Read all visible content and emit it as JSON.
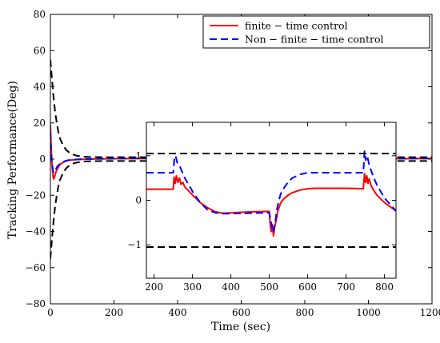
{
  "chart_data": {
    "type": "line",
    "title": "",
    "xlabel": "Time (sec)",
    "ylabel": "Tracking Performance(Deg)",
    "xlim": [
      0,
      1200
    ],
    "ylim": [
      -80,
      80
    ],
    "x_ticks": [
      0,
      200,
      400,
      600,
      800,
      1000,
      1200
    ],
    "y_ticks": [
      -80,
      -60,
      -40,
      -20,
      0,
      20,
      40,
      60,
      80
    ],
    "x_tick_labels": [
      "0",
      "200",
      "400",
      "600",
      "800",
      "1000",
      "1200"
    ],
    "y_tick_labels": [
      "−80",
      "−60",
      "−40",
      "−20",
      "0",
      "20",
      "40",
      "60",
      "80"
    ],
    "grid": false,
    "legend_position": "top-right",
    "series": [
      {
        "name": "finite − time control",
        "color": "#ff0000",
        "style": "solid",
        "x": [
          0,
          2,
          5,
          8,
          10,
          13,
          16,
          20,
          25,
          30,
          40,
          50,
          60,
          80,
          100,
          150,
          200,
          250,
          300,
          350,
          400,
          450,
          500,
          550,
          600,
          650,
          700,
          750,
          800,
          850,
          900,
          950,
          1000,
          1050,
          1100,
          1150,
          1200
        ],
        "y": [
          19,
          8,
          -3,
          -9,
          -11,
          -10,
          -8,
          -6,
          -4.5,
          -3,
          -1.8,
          -1,
          -0.6,
          -0.3,
          -0.1,
          0.1,
          0.2,
          0.25,
          0.3,
          0.25,
          0.2,
          0.25,
          0.3,
          0.2,
          0.1,
          -0.1,
          -0.2,
          -0.25,
          0.2,
          0.25,
          0.2,
          0.25,
          0.3,
          0.25,
          0.2,
          0.25,
          0.25
        ]
      },
      {
        "name": "Non − finite − time control",
        "color": "#0000ff",
        "style": "dashed",
        "x": [
          0,
          2,
          5,
          8,
          10,
          13,
          16,
          20,
          25,
          30,
          40,
          50,
          60,
          80,
          100,
          150,
          200,
          250,
          300,
          350,
          400,
          450,
          500,
          550,
          600,
          650,
          700,
          750,
          800,
          850,
          900,
          950,
          1000,
          1050,
          1100,
          1150,
          1200
        ],
        "y": [
          15,
          5,
          -2,
          -6,
          -7.5,
          -7,
          -6,
          -4.5,
          -3.5,
          -2.5,
          -1.5,
          -0.8,
          -0.5,
          -0.2,
          0,
          0.2,
          0.3,
          0.4,
          0.5,
          0.4,
          0.3,
          0.4,
          0.6,
          0.3,
          0.2,
          0,
          -0.2,
          -0.3,
          0.4,
          0.5,
          0.4,
          0.5,
          0.6,
          0.4,
          0.3,
          0.4,
          0.4
        ]
      },
      {
        "name": "",
        "color": "#000000",
        "style": "dashed",
        "x": [
          0,
          5,
          10,
          15,
          20,
          25,
          30,
          40,
          50,
          60,
          70,
          80,
          100,
          120,
          150,
          200,
          1200
        ],
        "y": [
          55,
          44,
          34,
          26,
          20,
          15,
          11.5,
          7.5,
          5,
          3.5,
          2.6,
          2,
          1.4,
          1.2,
          1.08,
          1.05,
          1.05
        ]
      },
      {
        "name": "",
        "color": "#000000",
        "style": "dashed",
        "x": [
          0,
          5,
          10,
          15,
          20,
          25,
          30,
          40,
          50,
          60,
          70,
          80,
          100,
          120,
          150,
          200,
          1200
        ],
        "y": [
          -55,
          -44,
          -34,
          -26,
          -20,
          -15,
          -11.5,
          -7.5,
          -5,
          -3.5,
          -2.6,
          -2,
          -1.4,
          -1.2,
          -1.08,
          -1.05,
          -1.05
        ]
      }
    ],
    "inset": {
      "xlim": [
        180,
        830
      ],
      "ylim": [
        -1.75,
        1.75
      ],
      "x_ticks": [
        200,
        300,
        400,
        500,
        600,
        700,
        800
      ],
      "y_ticks": [
        -1,
        0,
        1
      ],
      "x_tick_labels": [
        "200",
        "300",
        "400",
        "500",
        "600",
        "700",
        "800"
      ],
      "y_tick_labels": [
        "−1",
        "0",
        "1"
      ],
      "series": [
        {
          "color": "#ff0000",
          "style": "solid",
          "x": [
            180,
            250,
            252,
            255,
            258,
            262,
            266,
            270,
            275,
            280,
            300,
            320,
            340,
            360,
            380,
            400,
            450,
            500,
            502,
            505,
            508,
            511,
            514,
            518,
            522,
            526,
            530,
            540,
            550,
            560,
            580,
            600,
            620,
            650,
            700,
            745,
            748,
            751,
            754,
            757,
            760,
            765,
            770,
            780,
            800,
            830
          ],
          "y": [
            0.25,
            0.25,
            0.52,
            0.38,
            0.55,
            0.4,
            0.5,
            0.36,
            0.4,
            0.3,
            0.12,
            -0.05,
            -0.17,
            -0.26,
            -0.29,
            -0.28,
            -0.26,
            -0.25,
            -0.5,
            -0.7,
            -0.55,
            -0.8,
            -0.6,
            -0.45,
            -0.25,
            -0.15,
            -0.05,
            0.05,
            0.12,
            0.17,
            0.23,
            0.26,
            0.27,
            0.27,
            0.27,
            0.26,
            0.6,
            0.4,
            0.55,
            0.38,
            0.48,
            0.33,
            0.25,
            0.12,
            -0.05,
            -0.24
          ]
        },
        {
          "color": "#0000ff",
          "style": "dashed",
          "x": [
            180,
            250,
            253,
            256,
            260,
            265,
            270,
            280,
            300,
            320,
            340,
            360,
            380,
            400,
            450,
            500,
            505,
            510,
            515,
            520,
            525,
            530,
            540,
            550,
            560,
            580,
            600,
            620,
            650,
            700,
            745,
            748,
            751,
            755,
            760,
            770,
            780,
            800,
            830
          ],
          "y": [
            0.62,
            0.62,
            0.95,
            1.0,
            0.85,
            0.8,
            0.7,
            0.5,
            0.2,
            -0.05,
            -0.22,
            -0.28,
            -0.3,
            -0.3,
            -0.29,
            -0.28,
            -0.5,
            -0.72,
            -0.52,
            -0.2,
            0.0,
            0.15,
            0.3,
            0.42,
            0.5,
            0.58,
            0.62,
            0.62,
            0.62,
            0.62,
            0.62,
            1.1,
            0.9,
            1.0,
            0.8,
            0.55,
            0.35,
            0.05,
            -0.24
          ]
        },
        {
          "color": "#000000",
          "style": "dashed",
          "x": [
            180,
            830
          ],
          "y": [
            1.05,
            1.05
          ]
        },
        {
          "color": "#000000",
          "style": "dashed",
          "x": [
            180,
            830
          ],
          "y": [
            -1.05,
            -1.05
          ]
        }
      ]
    }
  }
}
